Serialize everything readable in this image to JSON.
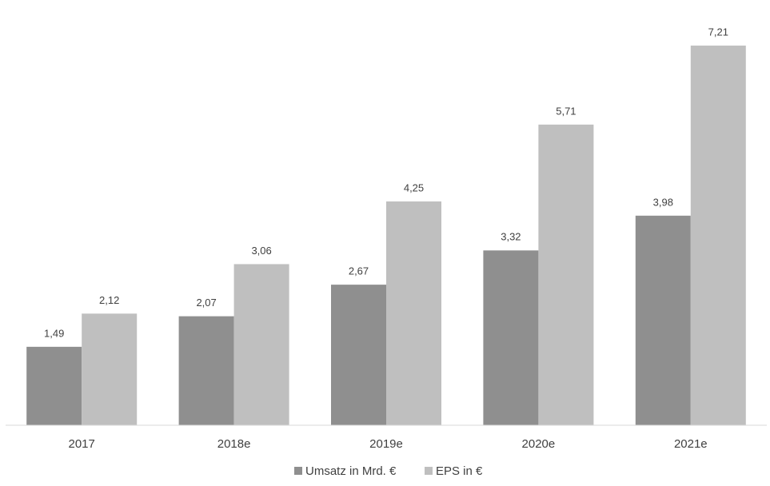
{
  "chart_data": {
    "type": "bar",
    "categories": [
      "2017",
      "2018e",
      "2019e",
      "2020e",
      "2021e"
    ],
    "series": [
      {
        "name": "Umsatz in Mrd. €",
        "color": "#8f8f8f",
        "values": [
          1.49,
          2.07,
          2.67,
          3.32,
          3.98
        ],
        "value_labels": [
          "1,49",
          "2,07",
          "2,67",
          "3,32",
          "3,98"
        ]
      },
      {
        "name": "EPS in €",
        "color": "#bfbfbf",
        "values": [
          2.12,
          3.06,
          4.25,
          5.71,
          7.21
        ],
        "value_labels": [
          "2,12",
          "3,06",
          "4,25",
          "5,71",
          "7,21"
        ]
      }
    ],
    "ylim": [
      0,
      8
    ],
    "legend": "bottom"
  }
}
